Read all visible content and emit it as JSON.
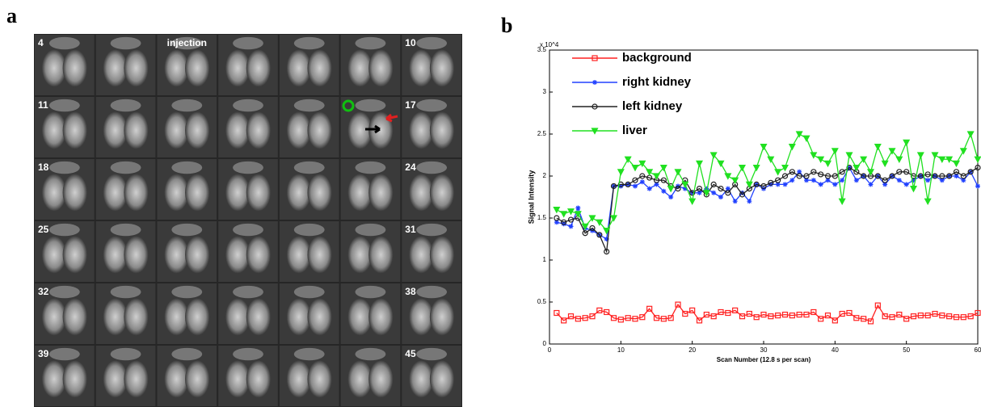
{
  "panel_labels": [
    "a",
    "b"
  ],
  "image_grid": {
    "annotation": "injection",
    "rows": [
      {
        "left": "4",
        "right": "10"
      },
      {
        "left": "11",
        "right": "17"
      },
      {
        "left": "18",
        "right": "24"
      },
      {
        "left": "25",
        "right": "31"
      },
      {
        "left": "32",
        "right": "38"
      },
      {
        "left": "39",
        "right": "45"
      }
    ]
  },
  "chart_data": {
    "type": "line",
    "xlabel": "Scan Number (12.8 s per scan)",
    "ylabel": "Signal Intensity",
    "y_multiplier": "x 10^4",
    "x": [
      1,
      2,
      3,
      4,
      5,
      6,
      7,
      8,
      9,
      10,
      11,
      12,
      13,
      14,
      15,
      16,
      17,
      18,
      19,
      20,
      21,
      22,
      23,
      24,
      25,
      26,
      27,
      28,
      29,
      30,
      31,
      32,
      33,
      34,
      35,
      36,
      37,
      38,
      39,
      40,
      41,
      42,
      43,
      44,
      45,
      46,
      47,
      48,
      49,
      50,
      51,
      52,
      53,
      54,
      55,
      56,
      57,
      58,
      59,
      60
    ],
    "xlim": [
      0,
      60
    ],
    "xticks": [
      0,
      10,
      20,
      30,
      40,
      50,
      60
    ],
    "ylim": [
      0,
      3.5
    ],
    "yticks": [
      0,
      0.5,
      1,
      1.5,
      2,
      2.5,
      3,
      3.5
    ],
    "legend": "upper left",
    "series": [
      {
        "name": "background",
        "color": "#ff2020",
        "marker": "square",
        "values": [
          0.37,
          0.28,
          0.33,
          0.3,
          0.31,
          0.33,
          0.4,
          0.38,
          0.31,
          0.29,
          0.31,
          0.3,
          0.32,
          0.42,
          0.31,
          0.3,
          0.31,
          0.47,
          0.36,
          0.4,
          0.28,
          0.35,
          0.33,
          0.38,
          0.37,
          0.4,
          0.33,
          0.36,
          0.32,
          0.35,
          0.33,
          0.34,
          0.35,
          0.34,
          0.35,
          0.35,
          0.38,
          0.3,
          0.34,
          0.28,
          0.36,
          0.37,
          0.31,
          0.3,
          0.27,
          0.46,
          0.33,
          0.32,
          0.35,
          0.3,
          0.33,
          0.34,
          0.34,
          0.36,
          0.34,
          0.33,
          0.32,
          0.32,
          0.33,
          0.37
        ]
      },
      {
        "name": "right kidney",
        "color": "#2040ff",
        "marker": "star",
        "values": [
          1.45,
          1.43,
          1.4,
          1.62,
          1.38,
          1.35,
          1.3,
          1.25,
          1.88,
          1.88,
          1.9,
          1.88,
          1.93,
          1.85,
          1.9,
          1.82,
          1.75,
          1.88,
          1.85,
          1.8,
          1.8,
          1.85,
          1.8,
          1.75,
          1.85,
          1.7,
          1.8,
          1.7,
          1.9,
          1.85,
          1.9,
          1.9,
          1.9,
          1.95,
          2.05,
          1.95,
          1.95,
          1.9,
          1.95,
          1.9,
          1.95,
          2.1,
          1.95,
          2.0,
          1.9,
          2.0,
          1.9,
          2.0,
          1.95,
          1.9,
          1.95,
          2.0,
          1.95,
          2.0,
          1.95,
          2.0,
          2.0,
          1.95,
          2.05,
          1.88
        ]
      },
      {
        "name": "left kidney",
        "color": "#202020",
        "marker": "circle",
        "values": [
          1.5,
          1.45,
          1.48,
          1.5,
          1.32,
          1.38,
          1.3,
          1.1,
          1.88,
          1.9,
          1.9,
          1.95,
          2.0,
          1.98,
          1.95,
          1.95,
          1.88,
          1.85,
          1.95,
          1.8,
          1.85,
          1.78,
          1.9,
          1.85,
          1.8,
          1.9,
          1.78,
          1.85,
          1.9,
          1.88,
          1.92,
          1.95,
          2.0,
          2.05,
          2.0,
          2.0,
          2.05,
          2.02,
          2.0,
          2.0,
          2.05,
          2.1,
          2.05,
          2.0,
          2.0,
          2.0,
          1.95,
          2.0,
          2.05,
          2.05,
          2.0,
          2.0,
          2.02,
          2.0,
          2.0,
          2.0,
          2.05,
          2.0,
          2.05,
          2.1
        ]
      },
      {
        "name": "liver",
        "color": "#20e020",
        "marker": "triangle-down",
        "values": [
          1.6,
          1.55,
          1.58,
          1.55,
          1.4,
          1.5,
          1.45,
          1.35,
          1.5,
          2.05,
          2.2,
          2.1,
          2.15,
          2.05,
          2.0,
          2.1,
          1.85,
          2.05,
          1.9,
          1.7,
          2.15,
          1.8,
          2.25,
          2.15,
          2.0,
          1.95,
          2.1,
          1.9,
          2.1,
          2.35,
          2.2,
          2.05,
          2.1,
          2.35,
          2.5,
          2.45,
          2.25,
          2.2,
          2.15,
          2.3,
          1.7,
          2.25,
          2.1,
          2.2,
          2.05,
          2.35,
          2.15,
          2.3,
          2.2,
          2.4,
          1.85,
          2.25,
          1.7,
          2.25,
          2.2,
          2.2,
          2.15,
          2.3,
          2.5,
          2.2
        ]
      }
    ]
  }
}
